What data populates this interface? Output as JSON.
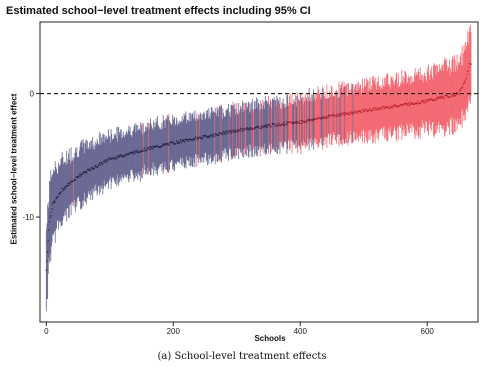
{
  "chart_data": {
    "type": "scatter",
    "title": "Estimated school−level treatment effects including 95% CI",
    "xlabel": "Schools",
    "ylabel": "Estimated school−level treatment effect",
    "caption": "(a) School-level treatment effects",
    "xlim": [
      -10,
      680
    ],
    "ylim": [
      -18.5,
      5.8
    ],
    "x_ticks": [
      0,
      200,
      400,
      600
    ],
    "y_ticks": [
      -10,
      0
    ],
    "reference_line": {
      "y": 0,
      "style": "dashed"
    },
    "n_schools": 670,
    "series": [
      {
        "color": "#4a4a7c"
      },
      {
        "color": "#f04a55"
      }
    ],
    "point_estimate_profile": [
      {
        "x": 0,
        "y": -14.3
      },
      {
        "x": 5,
        "y": -10.3
      },
      {
        "x": 10,
        "y": -9.0
      },
      {
        "x": 25,
        "y": -7.8
      },
      {
        "x": 50,
        "y": -6.7
      },
      {
        "x": 100,
        "y": -5.3
      },
      {
        "x": 150,
        "y": -4.6
      },
      {
        "x": 200,
        "y": -4.0
      },
      {
        "x": 250,
        "y": -3.5
      },
      {
        "x": 300,
        "y": -3.0
      },
      {
        "x": 350,
        "y": -2.6
      },
      {
        "x": 400,
        "y": -2.3
      },
      {
        "x": 450,
        "y": -1.8
      },
      {
        "x": 500,
        "y": -1.4
      },
      {
        "x": 550,
        "y": -1.0
      },
      {
        "x": 600,
        "y": -0.6
      },
      {
        "x": 650,
        "y": 0.0
      },
      {
        "x": 660,
        "y": 1.0
      },
      {
        "x": 668,
        "y": 2.5
      }
    ],
    "ci_halfwidth_profile": [
      {
        "x": 0,
        "y": 3.2
      },
      {
        "x": 20,
        "y": 2.4
      },
      {
        "x": 100,
        "y": 1.9
      },
      {
        "x": 300,
        "y": 1.8
      },
      {
        "x": 450,
        "y": 2.0
      },
      {
        "x": 600,
        "y": 2.3
      },
      {
        "x": 668,
        "y": 2.6
      }
    ],
    "red_fraction_profile": [
      {
        "x": 0,
        "y": 0.0
      },
      {
        "x": 200,
        "y": 0.02
      },
      {
        "x": 300,
        "y": 0.1
      },
      {
        "x": 350,
        "y": 0.25
      },
      {
        "x": 400,
        "y": 0.45
      },
      {
        "x": 450,
        "y": 0.7
      },
      {
        "x": 480,
        "y": 0.9
      },
      {
        "x": 500,
        "y": 1.0
      },
      {
        "x": 670,
        "y": 1.0
      }
    ]
  }
}
